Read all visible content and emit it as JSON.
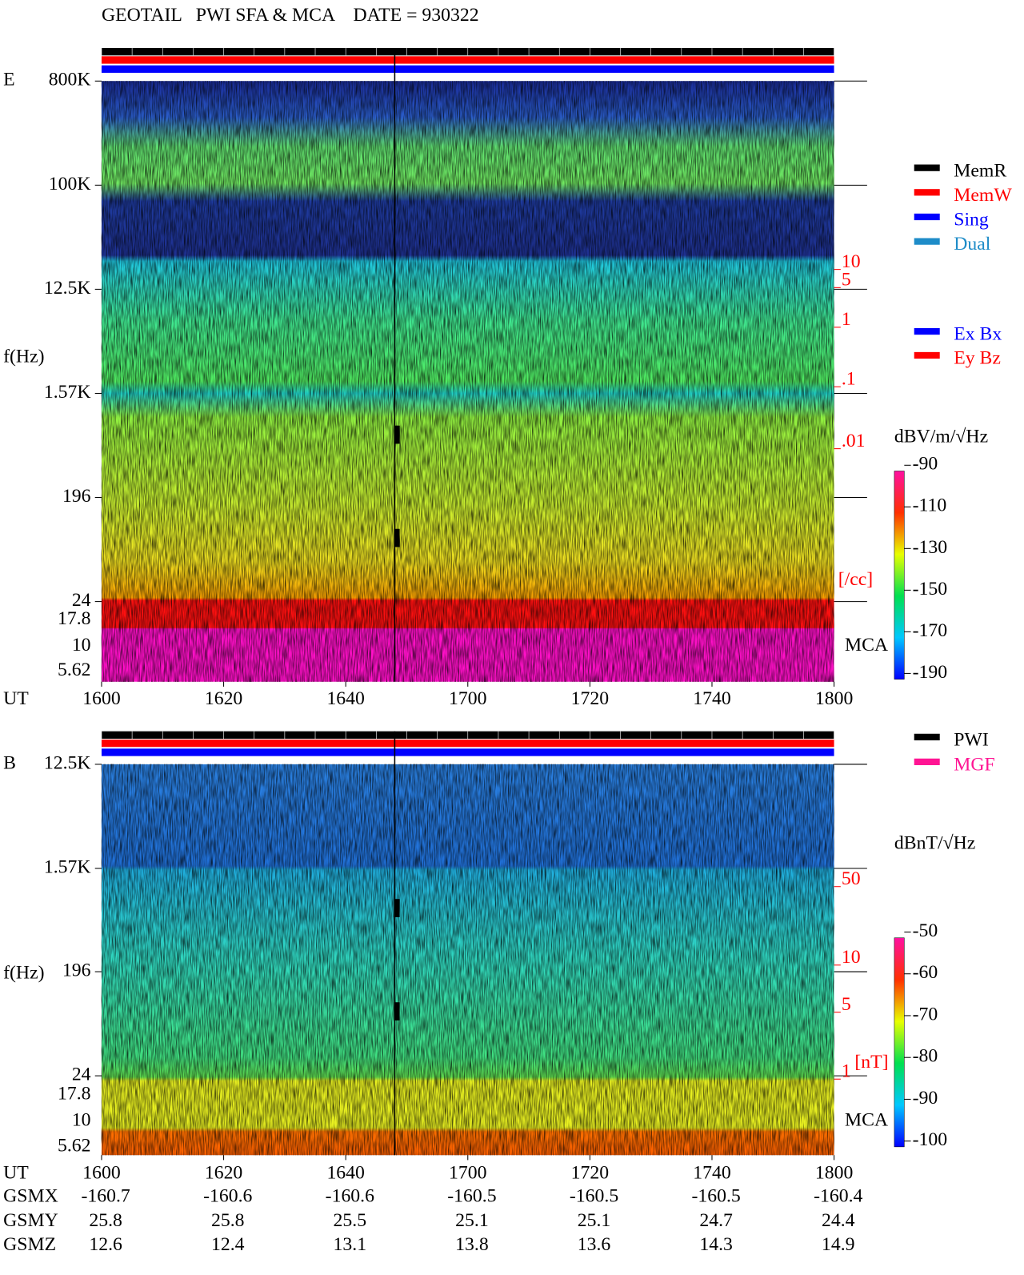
{
  "title": "GEOTAIL   PWI SFA & MCA    DATE = 930322",
  "mode_legend": [
    {
      "name": "MemR",
      "color": "#000000"
    },
    {
      "name": "MemW",
      "color": "#ff0000"
    },
    {
      "name": "Sing",
      "color": "#0000ff"
    },
    {
      "name": "Dual",
      "color": "#1e8cc8"
    }
  ],
  "panels": [
    {
      "label": "E",
      "y_axis_label": "f(Hz)",
      "yticks": [
        "800K",
        "100K",
        "12.5K",
        "1.57K",
        "196",
        "24",
        "17.8",
        "10",
        "5.62"
      ],
      "x_axis_label": "UT",
      "xticks": [
        "1600",
        "1620",
        "1640",
        "1700",
        "1720",
        "1740",
        "1800"
      ],
      "density_ticks": [
        "10",
        "5",
        "1",
        ".1",
        ".01"
      ],
      "density_unit": "[/cc]",
      "mca_label": "MCA",
      "legend": [
        {
          "name": "Ex Bx",
          "color": "#0000ff"
        },
        {
          "name": "Ey Bz",
          "color": "#ff0000"
        }
      ],
      "colorbar_unit": "dBV/m/√Hz",
      "colorbar_ticks": [
        "-90",
        "-110",
        "-130",
        "-150",
        "-170",
        "-190"
      ]
    },
    {
      "label": "B",
      "y_axis_label": "f(Hz)",
      "yticks": [
        "12.5K",
        "1.57K",
        "196",
        "24",
        "17.8",
        "10",
        "5.62"
      ],
      "x_axis_label": "UT",
      "xticks": [
        "1600",
        "1620",
        "1640",
        "1700",
        "1720",
        "1740",
        "1800"
      ],
      "density_ticks": [
        "50",
        "10",
        "5",
        "1"
      ],
      "density_unit": "[nT]",
      "mca_label": "MCA",
      "legend": [
        {
          "name": "PWI",
          "color": "#000000"
        },
        {
          "name": "MGF",
          "color": "#ff1493"
        }
      ],
      "colorbar_unit": "dBnT/√Hz",
      "colorbar_ticks": [
        "-50",
        "-60",
        "-70",
        "-80",
        "-90",
        "-100"
      ]
    }
  ],
  "orbit": [
    {
      "name": "GSMX",
      "values": [
        "-160.7",
        "-160.6",
        "-160.6",
        "-160.5",
        "-160.5",
        "-160.5",
        "-160.4"
      ]
    },
    {
      "name": "GSMY",
      "values": [
        "25.8",
        "25.8",
        "25.5",
        "25.1",
        "25.1",
        "24.7",
        "24.4"
      ]
    },
    {
      "name": "GSMZ",
      "values": [
        "12.6",
        "12.4",
        "13.1",
        "13.8",
        "13.6",
        "14.3",
        "14.9"
      ]
    }
  ]
}
